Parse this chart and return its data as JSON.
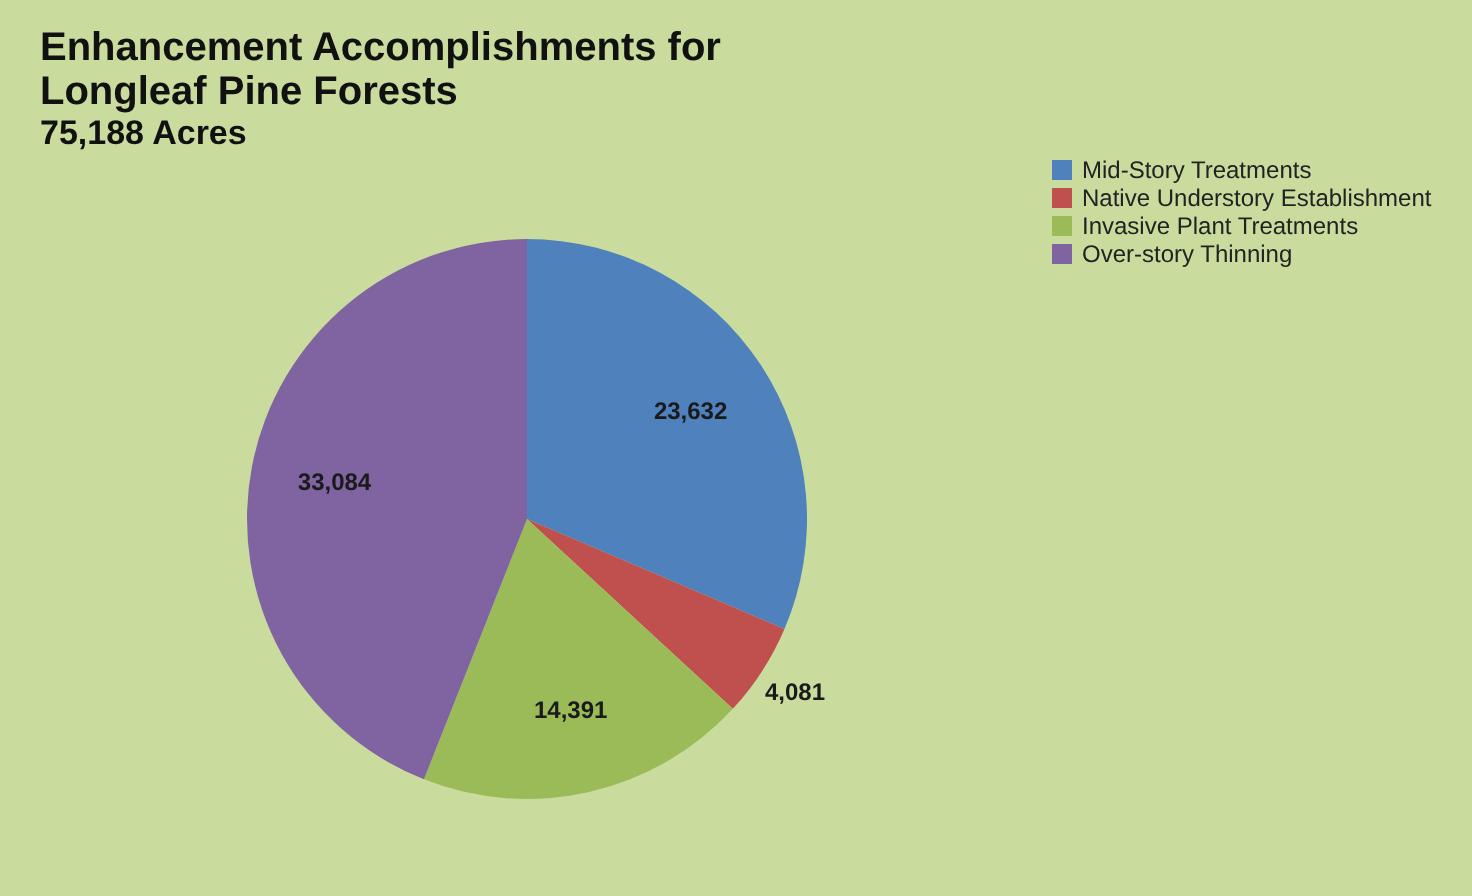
{
  "chart_data": {
    "type": "pie",
    "title": "Enhancement Accomplishments for Longleaf Pine Forests",
    "subtitle": "75,188 Acres",
    "categories": [
      "Mid-Story Treatments",
      "Native Understory Establishment",
      "Invasive Plant Treatments",
      "Over-story Thinning"
    ],
    "values": [
      23632,
      4081,
      14391,
      33084
    ],
    "colors": [
      "#4f81bd",
      "#c0504d",
      "#9bbb59",
      "#8064a2"
    ],
    "value_labels": [
      "23,632",
      "4,081",
      "14,391",
      "33,084"
    ],
    "legend": "right"
  }
}
